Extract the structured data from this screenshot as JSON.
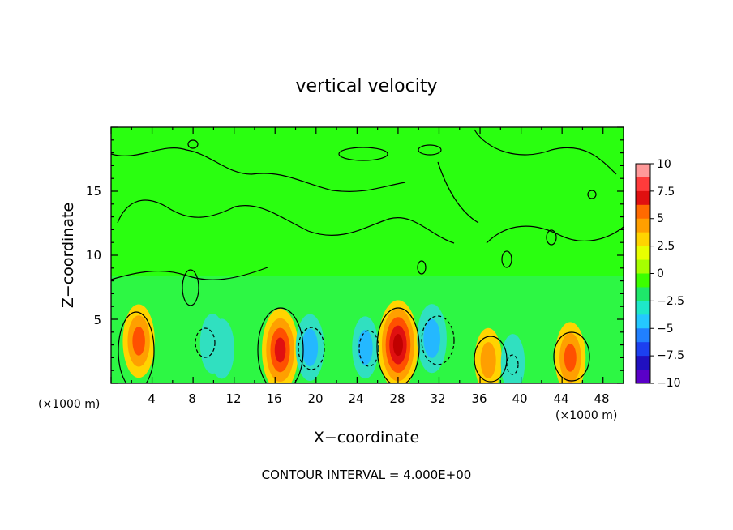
{
  "chart_data": {
    "type": "heatmap",
    "title": "vertical velocity",
    "xlabel": "X−coordinate",
    "ylabel": "Z−coordinate",
    "x_unit": "(×1000 m)",
    "footer": "CONTOUR INTERVAL = 4.000E+00",
    "x_ticks": [
      "4",
      "8",
      "12",
      "16",
      "20",
      "24",
      "28",
      "32",
      "36",
      "40",
      "44",
      "48"
    ],
    "y_ticks": [
      "5",
      "10",
      "15"
    ],
    "xlim": [
      0,
      50
    ],
    "ylim": [
      0,
      20
    ],
    "colorbar": {
      "min": -10,
      "max": 10,
      "labels": [
        "10",
        "7.5",
        "5",
        "2.5",
        "0",
        "−2.5",
        "−5",
        "−7.5",
        "−10"
      ],
      "colors": [
        "#ff9999",
        "#ff3b3b",
        "#e01010",
        "#ff6a00",
        "#ff9f00",
        "#ffd400",
        "#e8ff00",
        "#a6ff00",
        "#3cff00",
        "#1ee86a",
        "#1ee8c8",
        "#24c8ff",
        "#2080ff",
        "#1c40f0",
        "#2010c0",
        "#5a00c8"
      ]
    },
    "field_cells": [
      {
        "x": 2.7,
        "z": 3.3,
        "w": 0.55
      },
      {
        "x": 16.5,
        "z": 2.6,
        "w": 0.75
      },
      {
        "x": 28.0,
        "z": 3.0,
        "w": 0.9
      },
      {
        "x": 36.8,
        "z": 1.8,
        "w": 0.35
      },
      {
        "x": 44.8,
        "z": 2.0,
        "w": 0.5
      },
      {
        "x": 9.9,
        "z": 3.1,
        "w": -0.25
      },
      {
        "x": 10.8,
        "z": 2.7,
        "w": -0.25
      },
      {
        "x": 19.4,
        "z": 2.8,
        "w": -0.4
      },
      {
        "x": 31.3,
        "z": 3.5,
        "w": -0.45
      },
      {
        "x": 24.8,
        "z": 2.8,
        "w": -0.3
      },
      {
        "x": 39.2,
        "z": 1.6,
        "w": -0.2
      }
    ]
  }
}
